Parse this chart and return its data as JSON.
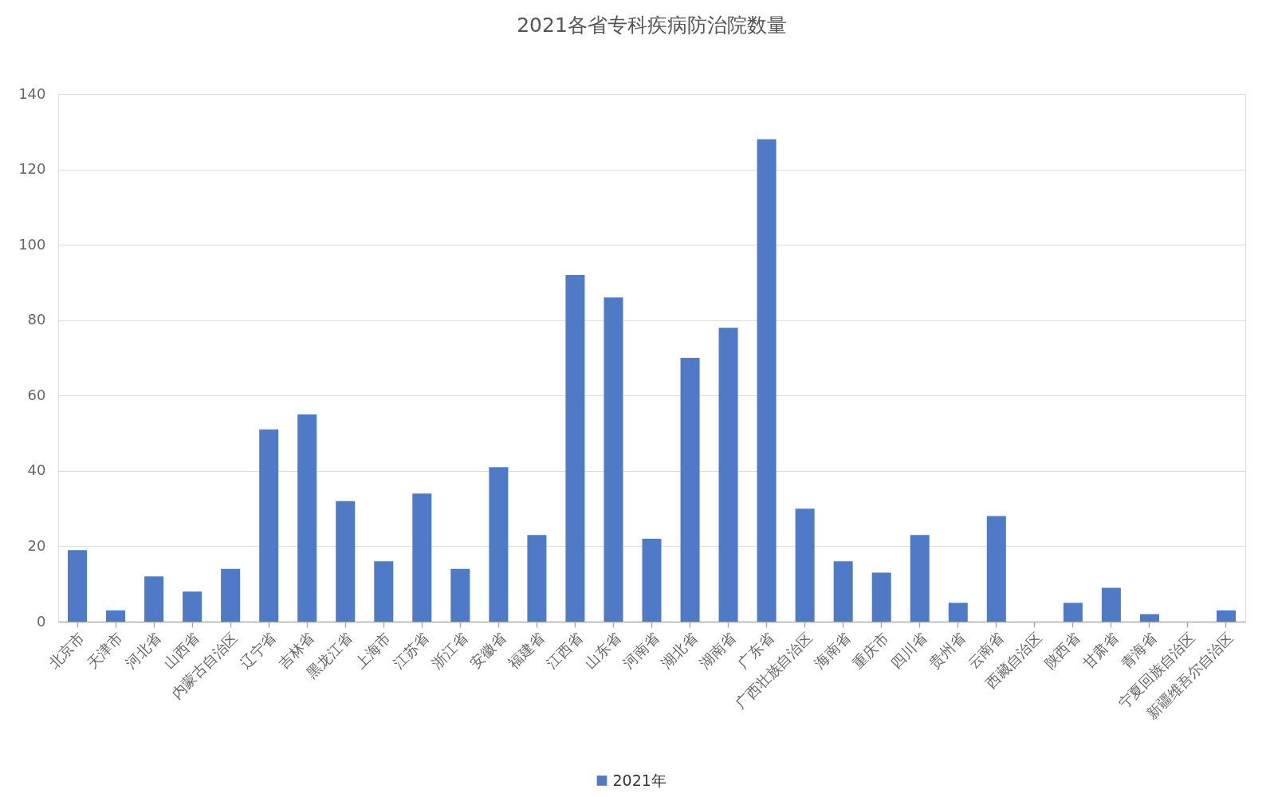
{
  "chart_data": {
    "type": "bar",
    "title": "2021各省专科疾病防治院数量",
    "categories": [
      "北京市",
      "天津市",
      "河北省",
      "山西省",
      "内蒙古自治区",
      "辽宁省",
      "吉林省",
      "黑龙江省",
      "上海市",
      "江苏省",
      "浙江省",
      "安徽省",
      "福建省",
      "江西省",
      "山东省",
      "河南省",
      "湖北省",
      "湖南省",
      "广东省",
      "广西壮族自治区",
      "海南省",
      "重庆市",
      "四川省",
      "贵州省",
      "云南省",
      "西藏自治区",
      "陕西省",
      "甘肃省",
      "青海省",
      "宁夏回族自治区",
      "新疆维吾尔自治区"
    ],
    "series": [
      {
        "name": "2021年",
        "color": "#4f7bc6",
        "values": [
          19,
          3,
          12,
          8,
          14,
          51,
          55,
          32,
          16,
          34,
          14,
          41,
          23,
          92,
          86,
          22,
          70,
          78,
          128,
          30,
          16,
          13,
          23,
          5,
          28,
          0,
          5,
          9,
          2,
          0,
          3
        ]
      }
    ],
    "ylim": [
      0,
      140
    ],
    "yticks": [
      0,
      20,
      40,
      60,
      80,
      100,
      120,
      140
    ],
    "grid": "y",
    "legend": "bottom"
  }
}
